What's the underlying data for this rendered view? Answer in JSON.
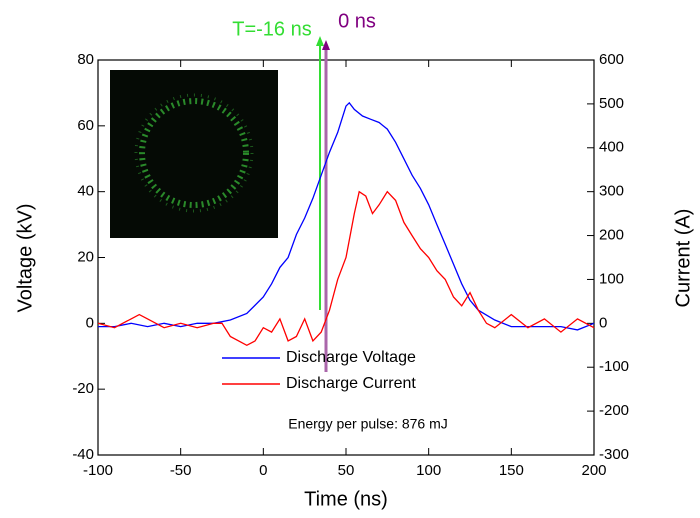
{
  "chart_data": {
    "type": "line",
    "xlabel": "Time (ns)",
    "ylabel": "Voltage (kV)",
    "y2label": "Current (A)",
    "annotations": [
      "T=-16 ns",
      "0 ns",
      "Energy per pulse: 876 mJ"
    ],
    "xlim": [
      -100,
      200
    ],
    "xticks": [
      -100,
      -50,
      0,
      50,
      100,
      150,
      200
    ],
    "ylim": [
      -40,
      80
    ],
    "yticks": [
      -40,
      -20,
      0,
      20,
      40,
      60,
      80
    ],
    "y2lim": [
      -300,
      600
    ],
    "y2ticks": [
      -300,
      -200,
      -100,
      0,
      100,
      200,
      300,
      400,
      500,
      600
    ],
    "series": [
      {
        "name": "Discharge Voltage",
        "color": "#0000ff",
        "x": [
          -100,
          -90,
          -80,
          -70,
          -60,
          -50,
          -40,
          -30,
          -20,
          -10,
          0,
          5,
          10,
          15,
          20,
          25,
          30,
          35,
          40,
          45,
          50,
          52,
          55,
          60,
          65,
          70,
          75,
          80,
          85,
          90,
          95,
          100,
          105,
          110,
          115,
          120,
          125,
          130,
          140,
          150,
          160,
          170,
          180,
          190,
          200
        ],
        "values": [
          -1,
          -1,
          0,
          -1,
          0,
          -1,
          0,
          0,
          1,
          3,
          8,
          12,
          17,
          20,
          27,
          32,
          38,
          45,
          52,
          58,
          66,
          67,
          65,
          63,
          62,
          61,
          59,
          55,
          50,
          45,
          41,
          36,
          30,
          24,
          18,
          12,
          7,
          4,
          1,
          -1,
          -1,
          -1,
          -1,
          -2,
          0
        ]
      },
      {
        "name": "Discharge Current",
        "color": "#ff0000",
        "axis": "y2",
        "x": [
          -100,
          -90,
          -80,
          -75,
          -70,
          -60,
          -50,
          -40,
          -30,
          -25,
          -20,
          -10,
          -5,
          0,
          5,
          10,
          15,
          20,
          25,
          30,
          35,
          40,
          45,
          50,
          55,
          58,
          62,
          66,
          70,
          75,
          80,
          85,
          90,
          95,
          100,
          105,
          110,
          115,
          120,
          125,
          130,
          135,
          140,
          150,
          160,
          170,
          180,
          190,
          200
        ],
        "values": [
          0,
          -10,
          10,
          20,
          10,
          -10,
          0,
          -10,
          0,
          0,
          -30,
          -50,
          -40,
          -10,
          -20,
          10,
          -40,
          -30,
          10,
          -40,
          -20,
          30,
          100,
          150,
          250,
          300,
          290,
          250,
          270,
          300,
          280,
          230,
          200,
          170,
          150,
          120,
          100,
          60,
          40,
          70,
          30,
          0,
          -10,
          20,
          -10,
          10,
          -20,
          10,
          -10
        ]
      }
    ]
  }
}
